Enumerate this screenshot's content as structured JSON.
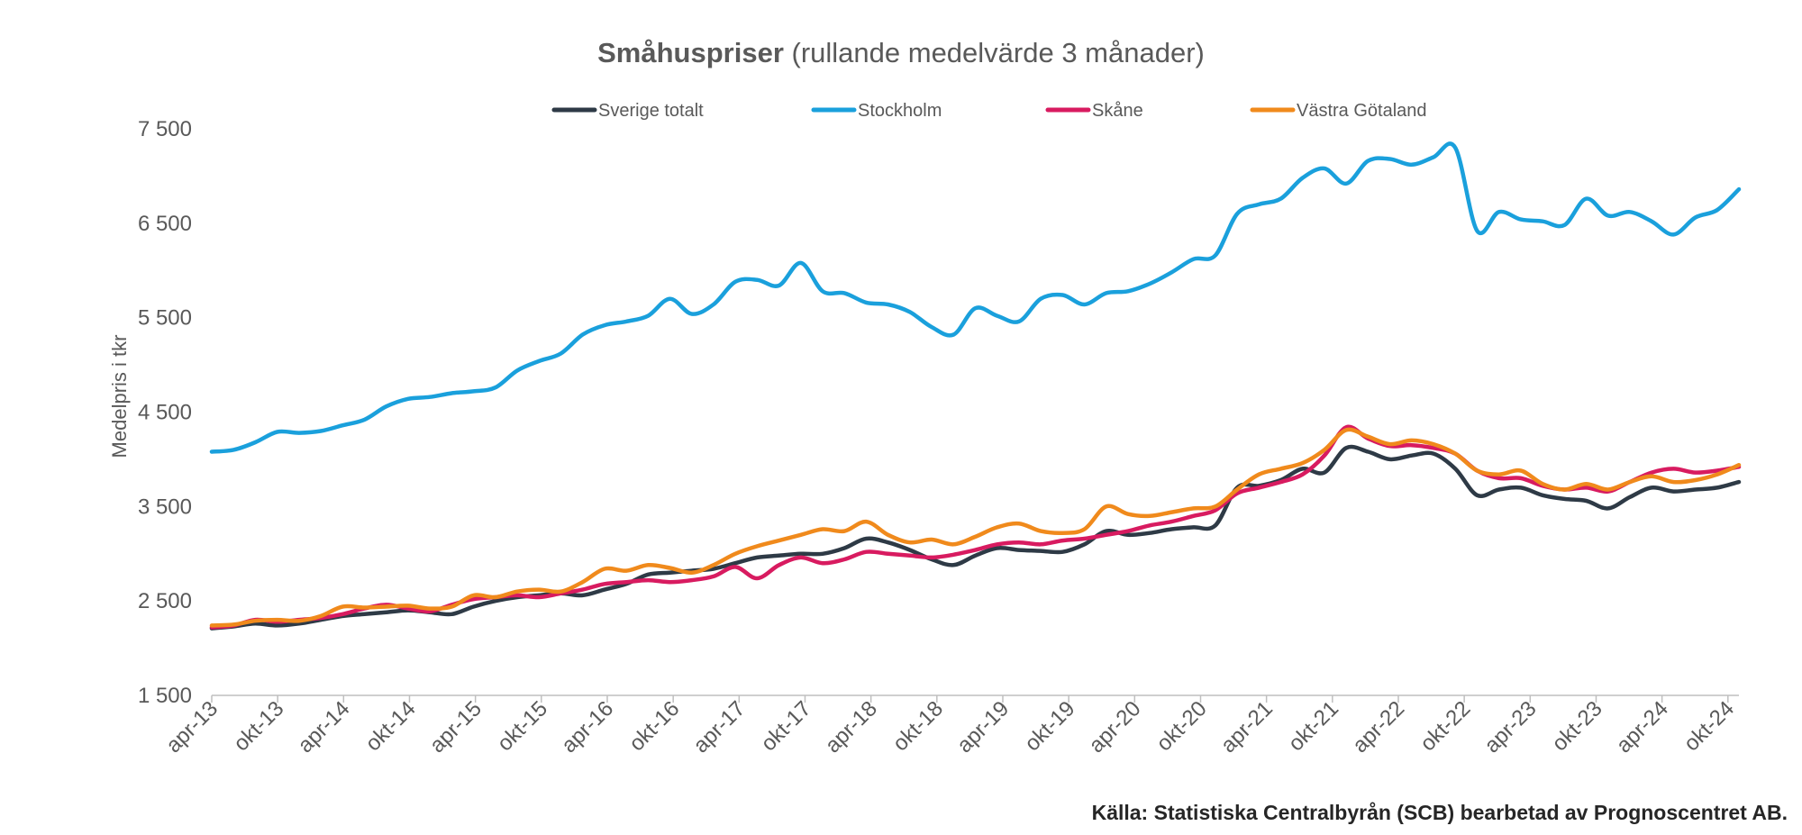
{
  "chart_data": {
    "type": "line",
    "title_bold": "Småhuspriser",
    "title_rest": " (rullande medelvärde 3 månader)",
    "ylabel": "Medelpris i tkr",
    "xlabel": "",
    "ylim": [
      1500,
      7500
    ],
    "yticks": [
      1500,
      2500,
      3500,
      4500,
      5500,
      6500,
      7500
    ],
    "ytick_labels": [
      "1 500",
      "2 500",
      "3 500",
      "4 500",
      "5 500",
      "6 500",
      "7 500"
    ],
    "x_ticks": [
      "apr-13",
      "okt-13",
      "apr-14",
      "okt-14",
      "apr-15",
      "okt-15",
      "apr-16",
      "okt-16",
      "apr-17",
      "okt-17",
      "apr-18",
      "okt-18",
      "apr-19",
      "okt-19",
      "apr-20",
      "okt-20",
      "apr-21",
      "okt-21",
      "apr-22",
      "okt-22",
      "apr-23",
      "okt-23",
      "apr-24",
      "okt-24"
    ],
    "grid": false,
    "legend_position": "top",
    "source": "Källa: Statistiska Centralbyrån (SCB) bearbetad av Prognoscentret AB.",
    "series": [
      {
        "name": "Sverige totalt",
        "color": "#2e3a46",
        "points": [
          [
            0,
            2210
          ],
          [
            1,
            2230
          ],
          [
            2,
            2260
          ],
          [
            3,
            2240
          ],
          [
            4,
            2260
          ],
          [
            5,
            2300
          ],
          [
            6,
            2340
          ],
          [
            7,
            2360
          ],
          [
            8,
            2380
          ],
          [
            9,
            2400
          ],
          [
            10,
            2380
          ],
          [
            11,
            2360
          ],
          [
            12,
            2440
          ],
          [
            13,
            2500
          ],
          [
            14,
            2540
          ],
          [
            15,
            2560
          ],
          [
            16,
            2580
          ],
          [
            17,
            2560
          ],
          [
            18,
            2620
          ],
          [
            19,
            2680
          ],
          [
            20,
            2780
          ],
          [
            21,
            2800
          ],
          [
            22,
            2820
          ],
          [
            23,
            2840
          ],
          [
            24,
            2900
          ],
          [
            25,
            2960
          ],
          [
            26,
            2980
          ],
          [
            27,
            3000
          ],
          [
            28,
            3000
          ],
          [
            29,
            3060
          ],
          [
            30,
            3160
          ],
          [
            31,
            3120
          ],
          [
            32,
            3040
          ],
          [
            33,
            2940
          ],
          [
            34,
            2880
          ],
          [
            35,
            2980
          ],
          [
            36,
            3060
          ],
          [
            37,
            3040
          ],
          [
            38,
            3030
          ],
          [
            39,
            3020
          ],
          [
            40,
            3100
          ],
          [
            41,
            3240
          ],
          [
            42,
            3200
          ],
          [
            43,
            3220
          ],
          [
            44,
            3260
          ],
          [
            45,
            3280
          ],
          [
            46,
            3300
          ],
          [
            47,
            3700
          ],
          [
            48,
            3720
          ],
          [
            49,
            3780
          ],
          [
            50,
            3900
          ],
          [
            51,
            3860
          ],
          [
            52,
            4120
          ],
          [
            53,
            4080
          ],
          [
            54,
            4000
          ],
          [
            55,
            4040
          ],
          [
            56,
            4060
          ],
          [
            57,
            3900
          ],
          [
            58,
            3620
          ],
          [
            59,
            3680
          ],
          [
            60,
            3700
          ],
          [
            61,
            3620
          ],
          [
            62,
            3580
          ],
          [
            63,
            3560
          ],
          [
            64,
            3480
          ],
          [
            65,
            3600
          ],
          [
            66,
            3700
          ],
          [
            67,
            3660
          ],
          [
            68,
            3680
          ],
          [
            69,
            3700
          ],
          [
            70,
            3760
          ]
        ]
      },
      {
        "name": "Stockholm",
        "color": "#1aa0dc",
        "points": [
          [
            0,
            4080
          ],
          [
            1,
            4100
          ],
          [
            2,
            4180
          ],
          [
            3,
            4290
          ],
          [
            4,
            4280
          ],
          [
            5,
            4300
          ],
          [
            6,
            4360
          ],
          [
            7,
            4420
          ],
          [
            8,
            4560
          ],
          [
            9,
            4640
          ],
          [
            10,
            4660
          ],
          [
            11,
            4700
          ],
          [
            12,
            4720
          ],
          [
            13,
            4760
          ],
          [
            14,
            4940
          ],
          [
            15,
            5040
          ],
          [
            16,
            5120
          ],
          [
            17,
            5320
          ],
          [
            18,
            5420
          ],
          [
            19,
            5460
          ],
          [
            20,
            5520
          ],
          [
            21,
            5700
          ],
          [
            22,
            5540
          ],
          [
            23,
            5640
          ],
          [
            24,
            5880
          ],
          [
            25,
            5900
          ],
          [
            26,
            5840
          ],
          [
            27,
            6080
          ],
          [
            28,
            5780
          ],
          [
            29,
            5760
          ],
          [
            30,
            5660
          ],
          [
            31,
            5640
          ],
          [
            32,
            5560
          ],
          [
            33,
            5400
          ],
          [
            34,
            5320
          ],
          [
            35,
            5600
          ],
          [
            36,
            5520
          ],
          [
            37,
            5460
          ],
          [
            38,
            5700
          ],
          [
            39,
            5740
          ],
          [
            40,
            5640
          ],
          [
            41,
            5760
          ],
          [
            42,
            5780
          ],
          [
            43,
            5860
          ],
          [
            44,
            5980
          ],
          [
            45,
            6120
          ],
          [
            46,
            6160
          ],
          [
            47,
            6600
          ],
          [
            48,
            6700
          ],
          [
            49,
            6760
          ],
          [
            50,
            6980
          ],
          [
            51,
            7080
          ],
          [
            52,
            6920
          ],
          [
            53,
            7160
          ],
          [
            54,
            7180
          ],
          [
            55,
            7120
          ],
          [
            56,
            7200
          ],
          [
            57,
            7300
          ],
          [
            58,
            6420
          ],
          [
            59,
            6620
          ],
          [
            60,
            6540
          ],
          [
            61,
            6520
          ],
          [
            62,
            6480
          ],
          [
            63,
            6760
          ],
          [
            64,
            6580
          ],
          [
            65,
            6620
          ],
          [
            66,
            6520
          ],
          [
            67,
            6380
          ],
          [
            68,
            6560
          ],
          [
            69,
            6640
          ],
          [
            70,
            6860
          ]
        ]
      },
      {
        "name": "Skåne",
        "color": "#d81b60",
        "points": [
          [
            0,
            2220
          ],
          [
            1,
            2240
          ],
          [
            2,
            2300
          ],
          [
            3,
            2280
          ],
          [
            4,
            2300
          ],
          [
            5,
            2320
          ],
          [
            6,
            2360
          ],
          [
            7,
            2420
          ],
          [
            8,
            2460
          ],
          [
            9,
            2420
          ],
          [
            10,
            2390
          ],
          [
            11,
            2460
          ],
          [
            12,
            2520
          ],
          [
            13,
            2540
          ],
          [
            14,
            2560
          ],
          [
            15,
            2540
          ],
          [
            16,
            2580
          ],
          [
            17,
            2620
          ],
          [
            18,
            2680
          ],
          [
            19,
            2700
          ],
          [
            20,
            2720
          ],
          [
            21,
            2700
          ],
          [
            22,
            2720
          ],
          [
            23,
            2760
          ],
          [
            24,
            2860
          ],
          [
            25,
            2740
          ],
          [
            26,
            2880
          ],
          [
            27,
            2960
          ],
          [
            28,
            2900
          ],
          [
            29,
            2940
          ],
          [
            30,
            3020
          ],
          [
            31,
            3000
          ],
          [
            32,
            2980
          ],
          [
            33,
            2960
          ],
          [
            34,
            2990
          ],
          [
            35,
            3040
          ],
          [
            36,
            3100
          ],
          [
            37,
            3120
          ],
          [
            38,
            3100
          ],
          [
            39,
            3140
          ],
          [
            40,
            3160
          ],
          [
            41,
            3200
          ],
          [
            42,
            3240
          ],
          [
            43,
            3300
          ],
          [
            44,
            3340
          ],
          [
            45,
            3400
          ],
          [
            46,
            3460
          ],
          [
            47,
            3640
          ],
          [
            48,
            3700
          ],
          [
            49,
            3760
          ],
          [
            50,
            3840
          ],
          [
            51,
            4040
          ],
          [
            52,
            4340
          ],
          [
            53,
            4220
          ],
          [
            54,
            4140
          ],
          [
            55,
            4150
          ],
          [
            56,
            4120
          ],
          [
            57,
            4060
          ],
          [
            58,
            3880
          ],
          [
            59,
            3800
          ],
          [
            60,
            3800
          ],
          [
            61,
            3720
          ],
          [
            62,
            3680
          ],
          [
            63,
            3700
          ],
          [
            64,
            3660
          ],
          [
            65,
            3760
          ],
          [
            66,
            3860
          ],
          [
            67,
            3900
          ],
          [
            68,
            3860
          ],
          [
            69,
            3880
          ],
          [
            70,
            3920
          ]
        ]
      },
      {
        "name": "Västra Götaland",
        "color": "#f08a1c",
        "points": [
          [
            0,
            2240
          ],
          [
            1,
            2250
          ],
          [
            2,
            2290
          ],
          [
            3,
            2300
          ],
          [
            4,
            2290
          ],
          [
            5,
            2340
          ],
          [
            6,
            2440
          ],
          [
            7,
            2430
          ],
          [
            8,
            2440
          ],
          [
            9,
            2450
          ],
          [
            10,
            2420
          ],
          [
            11,
            2440
          ],
          [
            12,
            2560
          ],
          [
            13,
            2540
          ],
          [
            14,
            2600
          ],
          [
            15,
            2620
          ],
          [
            16,
            2600
          ],
          [
            17,
            2700
          ],
          [
            18,
            2840
          ],
          [
            19,
            2820
          ],
          [
            20,
            2880
          ],
          [
            21,
            2850
          ],
          [
            22,
            2800
          ],
          [
            23,
            2880
          ],
          [
            24,
            3000
          ],
          [
            25,
            3080
          ],
          [
            26,
            3140
          ],
          [
            27,
            3200
          ],
          [
            28,
            3260
          ],
          [
            29,
            3240
          ],
          [
            30,
            3340
          ],
          [
            31,
            3200
          ],
          [
            32,
            3120
          ],
          [
            33,
            3150
          ],
          [
            34,
            3100
          ],
          [
            35,
            3180
          ],
          [
            36,
            3280
          ],
          [
            37,
            3320
          ],
          [
            38,
            3240
          ],
          [
            39,
            3220
          ],
          [
            40,
            3260
          ],
          [
            41,
            3500
          ],
          [
            42,
            3420
          ],
          [
            43,
            3400
          ],
          [
            44,
            3440
          ],
          [
            45,
            3480
          ],
          [
            46,
            3500
          ],
          [
            47,
            3680
          ],
          [
            48,
            3840
          ],
          [
            49,
            3900
          ],
          [
            50,
            3960
          ],
          [
            51,
            4100
          ],
          [
            52,
            4310
          ],
          [
            53,
            4240
          ],
          [
            54,
            4160
          ],
          [
            55,
            4200
          ],
          [
            56,
            4160
          ],
          [
            57,
            4060
          ],
          [
            58,
            3880
          ],
          [
            59,
            3840
          ],
          [
            60,
            3880
          ],
          [
            61,
            3740
          ],
          [
            62,
            3680
          ],
          [
            63,
            3740
          ],
          [
            64,
            3680
          ],
          [
            65,
            3760
          ],
          [
            66,
            3820
          ],
          [
            67,
            3760
          ],
          [
            68,
            3780
          ],
          [
            69,
            3840
          ],
          [
            70,
            3940
          ]
        ]
      }
    ]
  }
}
